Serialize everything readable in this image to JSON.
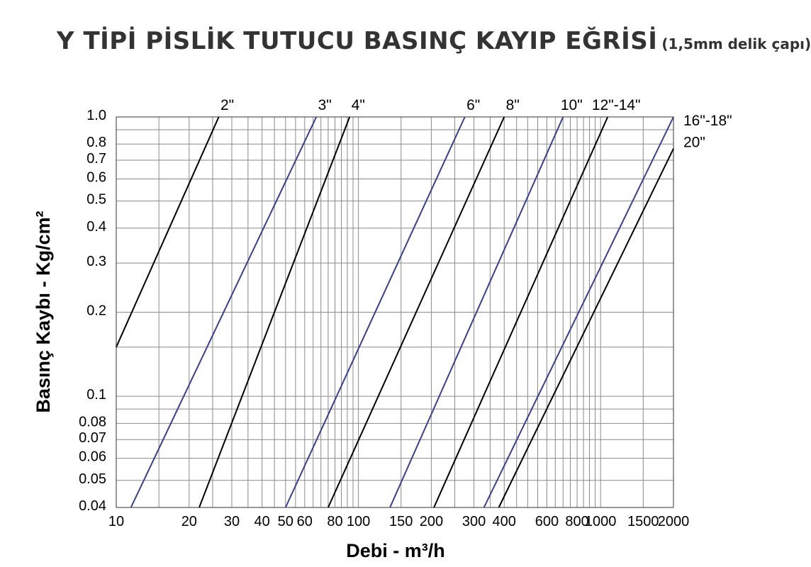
{
  "title": "Y TİPİ PİSLİK TUTUCU BASINÇ KAYIP EĞRİSİ",
  "subtitle": "(1,5mm delik çapı)",
  "chart_data": {
    "type": "line",
    "title": "Y TİPİ PİSLİK TUTUCU BASINÇ KAYIP EĞRİSİ",
    "subtitle": "(1,5mm delik çapı)",
    "xlabel": "Debi - m³/h",
    "ylabel": "Basınç Kaybı - Kg/cm²",
    "xscale": "log",
    "yscale": "log",
    "xlim": [
      10,
      2000
    ],
    "ylim": [
      0.04,
      1.0
    ],
    "grid": true,
    "x_ticks": [
      {
        "v": 10,
        "label": "10"
      },
      {
        "v": 20,
        "label": "20"
      },
      {
        "v": 30,
        "label": "30"
      },
      {
        "v": 40,
        "label": "40"
      },
      {
        "v": 50,
        "label": "50"
      },
      {
        "v": 60,
        "label": "60"
      },
      {
        "v": 80,
        "label": "80"
      },
      {
        "v": 100,
        "label": "100"
      },
      {
        "v": 150,
        "label": "150"
      },
      {
        "v": 200,
        "label": "200"
      },
      {
        "v": 300,
        "label": "300"
      },
      {
        "v": 400,
        "label": "400"
      },
      {
        "v": 600,
        "label": "600"
      },
      {
        "v": 800,
        "label": "800"
      },
      {
        "v": 1000,
        "label": "1000"
      },
      {
        "v": 1500,
        "label": "1500"
      },
      {
        "v": 2000,
        "label": "2000"
      }
    ],
    "y_ticks": [
      {
        "v": 0.04,
        "label": "0.04"
      },
      {
        "v": 0.05,
        "label": "0.05"
      },
      {
        "v": 0.06,
        "label": "0.06"
      },
      {
        "v": 0.07,
        "label": "0.07"
      },
      {
        "v": 0.08,
        "label": "0.08"
      },
      {
        "v": 0.1,
        "label": "0.1"
      },
      {
        "v": 0.2,
        "label": "0.2"
      },
      {
        "v": 0.3,
        "label": "0.3"
      },
      {
        "v": 0.4,
        "label": "0.4"
      },
      {
        "v": 0.5,
        "label": "0.5"
      },
      {
        "v": 0.6,
        "label": "0.6"
      },
      {
        "v": 0.7,
        "label": "0.7"
      },
      {
        "v": 0.8,
        "label": "0.8"
      },
      {
        "v": 1.0,
        "label": "1.0"
      }
    ],
    "x_grid": [
      10,
      15,
      20,
      25,
      30,
      35,
      40,
      45,
      50,
      55,
      60,
      65,
      70,
      75,
      80,
      85,
      90,
      95,
      100,
      150,
      200,
      250,
      300,
      350,
      400,
      450,
      500,
      550,
      600,
      650,
      700,
      750,
      800,
      850,
      900,
      950,
      1000,
      1500,
      2000
    ],
    "y_grid": [
      0.04,
      0.05,
      0.06,
      0.07,
      0.08,
      0.09,
      0.1,
      0.15,
      0.2,
      0.3,
      0.4,
      0.5,
      0.6,
      0.7,
      0.8,
      0.9,
      1.0
    ],
    "series": [
      {
        "name": "2\"",
        "color": "#000000",
        "points": [
          [
            10,
            0.15
          ],
          [
            26.5,
            1.0
          ]
        ]
      },
      {
        "name": "3\"",
        "color": "#3a3e8f",
        "points": [
          [
            11.5,
            0.04
          ],
          [
            67,
            1.0
          ]
        ]
      },
      {
        "name": "4\"",
        "color": "#000000",
        "points": [
          [
            22,
            0.04
          ],
          [
            92,
            1.0
          ]
        ]
      },
      {
        "name": "6\"",
        "color": "#3a3e8f",
        "points": [
          [
            50,
            0.04
          ],
          [
            275,
            1.0
          ]
        ]
      },
      {
        "name": "8\"",
        "color": "#000000",
        "points": [
          [
            75,
            0.04
          ],
          [
            400,
            1.0
          ]
        ]
      },
      {
        "name": "10\"",
        "color": "#3a3e8f",
        "points": [
          [
            135,
            0.04
          ],
          [
            700,
            1.0
          ]
        ]
      },
      {
        "name": "12\"-14\"",
        "color": "#000000",
        "points": [
          [
            205,
            0.04
          ],
          [
            1070,
            1.0
          ]
        ]
      },
      {
        "name": "16\"-18\"",
        "color": "#3a3e8f",
        "points": [
          [
            330,
            0.04
          ],
          [
            2000,
            1.0
          ]
        ]
      },
      {
        "name": "20\"",
        "color": "#000000",
        "points": [
          [
            380,
            0.04
          ],
          [
            2000,
            0.77
          ]
        ]
      }
    ]
  }
}
